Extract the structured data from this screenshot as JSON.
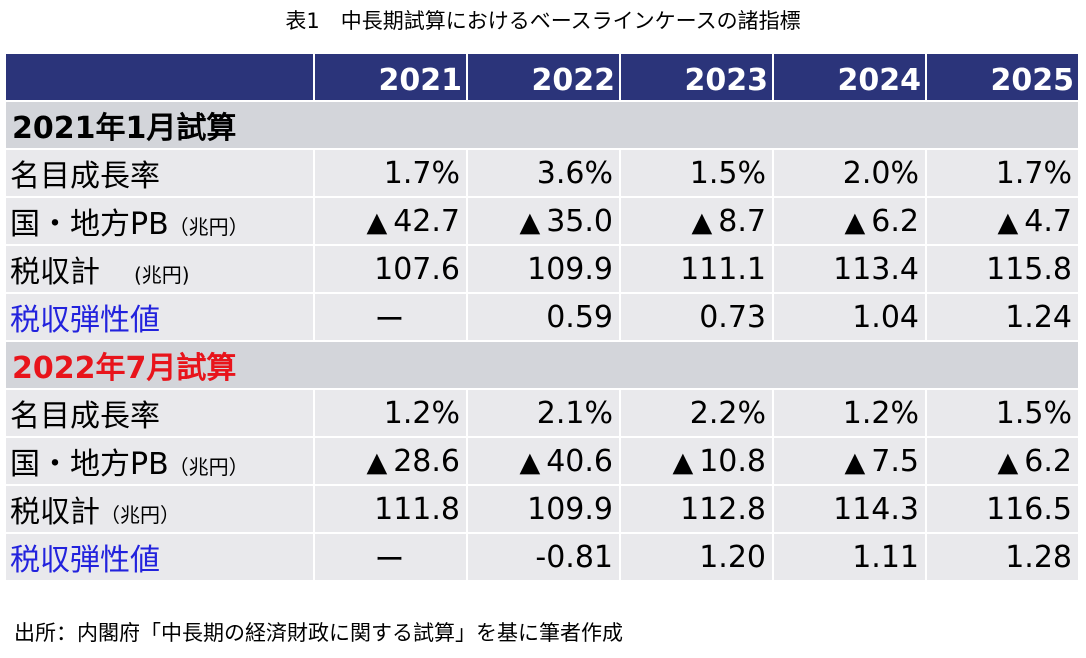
{
  "title": "表1　中長期試算におけるベースラインケースの諸指標",
  "years": [
    "2021",
    "2022",
    "2023",
    "2024",
    "2025"
  ],
  "section1": {
    "heading": "2021年1月試算",
    "nominal_growth": {
      "label": "名目成長率",
      "values": [
        "1.7%",
        "3.6%",
        "1.5%",
        "2.0%",
        "1.7%"
      ]
    },
    "pb_balance": {
      "label": "国・地方PB",
      "unit": "（兆円）",
      "triangle": "▲",
      "values": [
        "42.7",
        "35.0",
        "8.7",
        "6.2",
        "4.7"
      ]
    },
    "tax_revenue": {
      "label": "税収計",
      "unit": "(兆円)",
      "values": [
        "107.6",
        "109.9",
        "111.1",
        "113.4",
        "115.8"
      ]
    },
    "tax_elasticity": {
      "label": "税収弾性値",
      "values": [
        "ー",
        "0.59",
        "0.73",
        "1.04",
        "1.24"
      ]
    }
  },
  "section2": {
    "heading": "2022年7月試算",
    "nominal_growth": {
      "label": "名目成長率",
      "values": [
        "1.2%",
        "2.1%",
        "2.2%",
        "1.2%",
        "1.5%"
      ]
    },
    "pb_balance": {
      "label": "国・地方PB",
      "unit": "（兆円）",
      "triangle": "▲",
      "values": [
        "28.6",
        "40.6",
        "10.8",
        "7.5",
        "6.2"
      ]
    },
    "tax_revenue": {
      "label": "税収計",
      "unit": "（兆円）",
      "values": [
        "111.8",
        "109.9",
        "112.8",
        "114.3",
        "116.5"
      ]
    },
    "tax_elasticity": {
      "label": "税収弾性値",
      "values": [
        "ー",
        "-0.81",
        "1.20",
        "1.11",
        "1.28"
      ]
    }
  },
  "source": "出所：内閣府「中長期の経済財政に関する試算」を基に筆者作成",
  "colors": {
    "header_bg": "#2b347a",
    "section_bg": "#d3d5da",
    "row_bg": "#e9e9ec",
    "highlight_red": "#e8141b",
    "label_blue": "#2222dd"
  }
}
